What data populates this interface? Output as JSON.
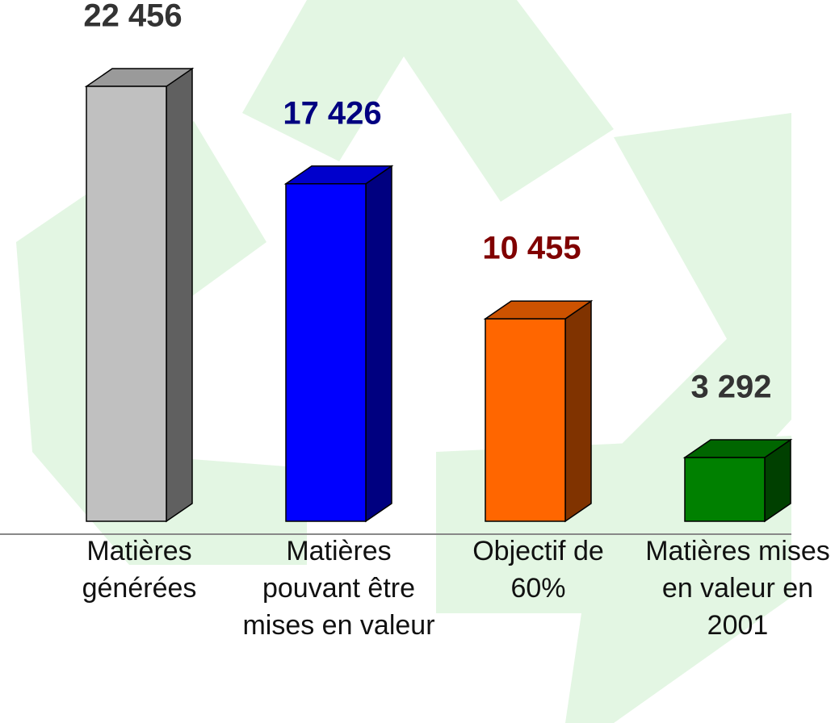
{
  "chart_data": {
    "type": "bar3d",
    "categories": [
      "Matières générées",
      "Matières pouvant être mises en valeur",
      "Objectif de 60%",
      "Matières mises en valeur en 2001"
    ],
    "values": [
      22456,
      17426,
      10455,
      3292
    ],
    "value_labels": [
      "22 456",
      "17 426",
      "10 455",
      "3 292"
    ],
    "colors": [
      "#c0c0c0",
      "#0000ff",
      "#ff6600",
      "#008000"
    ],
    "label_colors": [
      "#333333",
      "#000080",
      "#800000",
      "#333333"
    ],
    "ylim": [
      0,
      25000
    ]
  }
}
